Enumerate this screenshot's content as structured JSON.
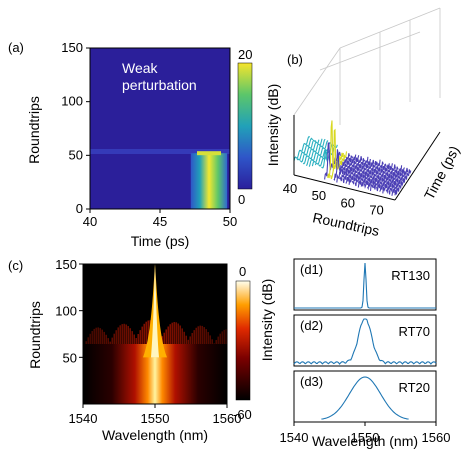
{
  "colors": {
    "heatmap_background": "#2b1f9a",
    "perturbation_spot": "#d6e03a",
    "spectrum_trace": "#1f77b4",
    "waterfall_trace": "#4b3fb5"
  },
  "chart_data": [
    {
      "id": "a",
      "type": "heatmap",
      "panel_label": "(a)",
      "annotation": "Weak perturbation",
      "xlabel": "Time (ps)",
      "ylabel": "Roundtrips",
      "xlim": [
        40,
        50
      ],
      "ylim": [
        0,
        150
      ],
      "xticks": [
        "40",
        "45",
        "50"
      ],
      "yticks": [
        "0",
        "50",
        "100",
        "150"
      ],
      "colorbar": {
        "ticks": [
          "20",
          "0"
        ],
        "range": [
          0,
          20
        ]
      },
      "features": {
        "perturbation_roundtrip": 52,
        "pulse_time_range": [
          47.2,
          49.8
        ],
        "peak_time": 48.5
      }
    },
    {
      "id": "b",
      "type": "line",
      "panel_label": "(b)",
      "xlabel": "Roundtrips",
      "ylabel": "Intensity (dB)",
      "zlabel": "Time (ps)",
      "xticks": [
        "40",
        "50",
        "60",
        "70"
      ],
      "xlim": [
        40,
        75
      ],
      "peak_roundtrip": 52
    },
    {
      "id": "c",
      "type": "heatmap",
      "panel_label": "(c)",
      "xlabel": "Wavelength (nm)",
      "ylabel": "Roundtrips",
      "xlim": [
        1540,
        1560
      ],
      "ylim": [
        0,
        150
      ],
      "xticks": [
        "1540",
        "1550",
        "1560"
      ],
      "yticks": [
        "50",
        "100",
        "150"
      ],
      "colorbar": {
        "label": "Intensity (dB)",
        "ticks": [
          "0",
          "-60"
        ],
        "range": [
          -60,
          0
        ]
      },
      "features": {
        "transition_roundtrip": 50,
        "center_wavelength": 1550
      }
    },
    {
      "id": "d",
      "type": "line",
      "xlabel": "Wavelength (nm)",
      "xlim": [
        1540,
        1560
      ],
      "xticks": [
        "1540",
        "1550",
        "1560"
      ],
      "series": [
        {
          "panel_label": "(d1)",
          "name": "RT130",
          "center": 1550,
          "width": 0.15
        },
        {
          "panel_label": "(d2)",
          "name": "RT70",
          "center": 1550,
          "width": 0.9
        },
        {
          "panel_label": "(d3)",
          "name": "RT20",
          "center": 1550,
          "width": 2.2
        }
      ]
    }
  ]
}
